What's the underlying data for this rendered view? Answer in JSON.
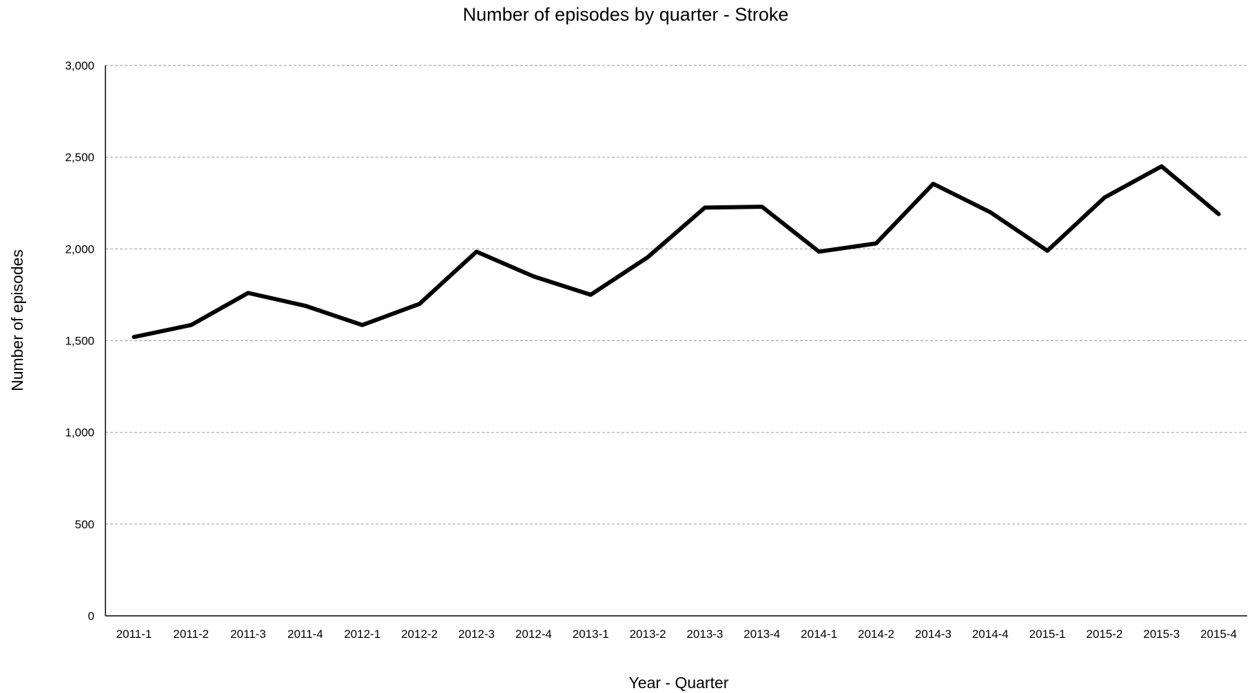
{
  "chart_data": {
    "type": "line",
    "title": "Number of episodes by quarter - Stroke",
    "xlabel": "Year - Quarter",
    "ylabel": "Number of episodes",
    "categories": [
      "2011-1",
      "2011-2",
      "2011-3",
      "2011-4",
      "2012-1",
      "2012-2",
      "2012-3",
      "2012-4",
      "2013-1",
      "2013-2",
      "2013-3",
      "2013-4",
      "2014-1",
      "2014-2",
      "2014-3",
      "2014-4",
      "2015-1",
      "2015-2",
      "2015-3",
      "2015-4"
    ],
    "series": [
      {
        "values": [
          1520,
          1585,
          1760,
          1690,
          1585,
          1700,
          1985,
          1850,
          1750,
          1955,
          2225,
          2230,
          1985,
          2030,
          2355,
          2200,
          1990,
          2280,
          2450,
          2190
        ],
        "color": "#000000"
      }
    ],
    "ylim": [
      0,
      3000
    ],
    "yticks": [
      0,
      500,
      1000,
      1500,
      2000,
      2500,
      3000
    ],
    "ytick_labels": [
      "0",
      "500",
      "1,000",
      "1,500",
      "2,000",
      "2,500",
      "3,000"
    ],
    "grid": "horizontal-dashed",
    "legend": "none"
  }
}
